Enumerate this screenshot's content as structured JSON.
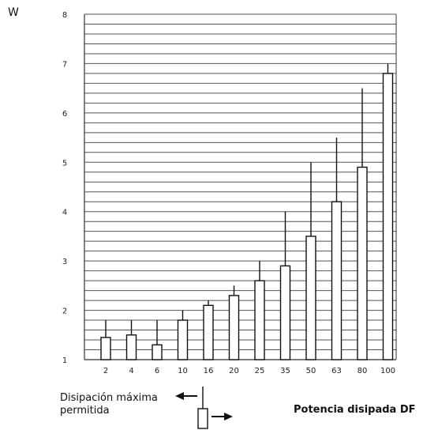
{
  "chart_data": {
    "type": "bar",
    "ylabel": "W",
    "ylim": [
      1,
      8
    ],
    "yticks": [
      1,
      2,
      3,
      4,
      5,
      6,
      7,
      8
    ],
    "grid": true,
    "categories": [
      "2",
      "4",
      "6",
      "10",
      "16",
      "20",
      "25",
      "35",
      "50",
      "63",
      "80",
      "100"
    ],
    "series": [
      {
        "name": "Potencia disipada DF",
        "values": [
          1.45,
          1.5,
          1.3,
          1.8,
          2.1,
          2.3,
          2.6,
          2.9,
          3.5,
          4.2,
          4.9,
          6.8
        ]
      },
      {
        "name": "Disipación máxima permitida",
        "values": [
          1.8,
          1.8,
          1.8,
          2.0,
          2.2,
          2.5,
          3.0,
          4.0,
          5.0,
          5.5,
          6.5,
          7.0
        ]
      }
    ]
  },
  "legend": {
    "left_label": "Disipación máxima\npermitida",
    "right_label": "Potencia disipada DF"
  }
}
